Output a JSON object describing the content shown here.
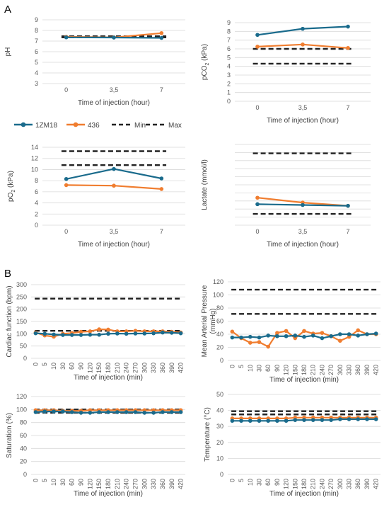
{
  "panels": [
    {
      "label": "A"
    },
    {
      "label": "B"
    }
  ],
  "legend": {
    "items": [
      {
        "label": "1ZM18",
        "color": "#1a6b8c",
        "style": "solid-marker"
      },
      {
        "label": "436",
        "color": "#f07d2f",
        "style": "solid-marker"
      },
      {
        "label": "Min",
        "color": "#222222",
        "style": "dashed"
      },
      {
        "label": "Max",
        "color": "#222222",
        "style": "dashed"
      }
    ]
  },
  "colors": {
    "series_1zm18": "#1a6b8c",
    "series_436": "#f07d2f",
    "reference": "#222222",
    "grid": "#d9d9d9",
    "axis_text": "#595959"
  },
  "chart_data": [
    {
      "type": "line",
      "panel": "A",
      "xlabel": "Time of injection (hour)",
      "ylabel": "pH",
      "ylabel_sub": "",
      "categories": [
        "0",
        "3,5",
        "7"
      ],
      "ylim": [
        3,
        9
      ],
      "yticks": [
        3,
        4,
        5,
        6,
        7,
        8,
        9
      ],
      "grid": true,
      "series": [
        {
          "name": "1ZM18",
          "values": [
            7.35,
            7.33,
            7.3
          ]
        },
        {
          "name": "436",
          "values": [
            7.4,
            7.35,
            7.75
          ]
        }
      ],
      "reference_lines": [
        {
          "name": "Min",
          "value": 7.35
        },
        {
          "name": "Max",
          "value": 7.45
        }
      ]
    },
    {
      "type": "line",
      "panel": "A",
      "xlabel": "Time of injection (hour)",
      "ylabel": "pCO",
      "ylabel_sub": "2",
      "ylabel_unit": " (kPa)",
      "categories": [
        "0",
        "3,5",
        "7"
      ],
      "ylim": [
        0,
        9
      ],
      "yticks": [
        0,
        1,
        2,
        3,
        4,
        5,
        6,
        7,
        8,
        9
      ],
      "grid": true,
      "series": [
        {
          "name": "1ZM18",
          "values": [
            7.6,
            8.3,
            8.55
          ]
        },
        {
          "name": "436",
          "values": [
            6.25,
            6.5,
            6.1
          ]
        }
      ],
      "reference_lines": [
        {
          "name": "Min",
          "value": 4.3
        },
        {
          "name": "Max",
          "value": 6.0
        }
      ]
    },
    {
      "type": "line",
      "panel": "A",
      "xlabel": "Time of injection (hour)",
      "ylabel": "pO",
      "ylabel_sub": "2",
      "ylabel_unit": " (kPa)",
      "categories": [
        "0",
        "3,5",
        "7"
      ],
      "ylim": [
        0,
        14
      ],
      "yticks": [
        0,
        2,
        4,
        6,
        8,
        10,
        12,
        14
      ],
      "grid": true,
      "series": [
        {
          "name": "1ZM18",
          "values": [
            8.3,
            10.1,
            8.4
          ]
        },
        {
          "name": "436",
          "values": [
            7.2,
            7.1,
            6.5
          ]
        }
      ],
      "reference_lines": [
        {
          "name": "Min",
          "value": 10.8
        },
        {
          "name": "Max",
          "value": 13.3
        }
      ]
    },
    {
      "type": "line",
      "panel": "A",
      "xlabel": "Time of injection (hour)",
      "ylabel": "Lactate (mmol/l)",
      "ylabel_sub": "",
      "categories": [
        "0",
        "3,5",
        "7"
      ],
      "ylim": [
        0,
        5
      ],
      "yticks": [
        0,
        0.5,
        1,
        1.5,
        2,
        2.5,
        3,
        3.5,
        4,
        4.5,
        5
      ],
      "ytick_labels": [
        "",
        "",
        "",
        "",
        "",
        "",
        "",
        "",
        "",
        "",
        ""
      ],
      "grid": true,
      "series": [
        {
          "name": "1ZM18",
          "values": [
            1.3,
            1.25,
            1.2
          ]
        },
        {
          "name": "436",
          "values": [
            1.7,
            1.4,
            1.2
          ]
        }
      ],
      "reference_lines": [
        {
          "name": "Min",
          "value": 0.7
        },
        {
          "name": "Max",
          "value": 4.45
        }
      ]
    },
    {
      "type": "line",
      "panel": "B",
      "xlabel": "Time of injection (min)",
      "ylabel": "Cardiac function (bpm)",
      "ylabel_sub": "",
      "categories": [
        "0",
        "5",
        "10",
        "30",
        "60",
        "90",
        "120",
        "150",
        "180",
        "210",
        "240",
        "270",
        "300",
        "330",
        "360",
        "390",
        "420"
      ],
      "ylim": [
        0,
        300
      ],
      "yticks": [
        0,
        50,
        100,
        150,
        200,
        250,
        300
      ],
      "grid": true,
      "series": [
        {
          "name": "1ZM18",
          "values": [
            102,
            100,
            97,
            95,
            95,
            95,
            96,
            96,
            100,
            101,
            100,
            101,
            101,
            102,
            105,
            104,
            102
          ]
        },
        {
          "name": "436",
          "values": [
            105,
            93,
            88,
            100,
            103,
            108,
            110,
            118,
            117,
            110,
            110,
            112,
            110,
            110,
            110,
            108,
            105
          ]
        }
      ],
      "reference_lines": [
        {
          "name": "Min",
          "value": 112
        },
        {
          "name": "Max",
          "value": 243
        }
      ]
    },
    {
      "type": "line",
      "panel": "B",
      "xlabel": "Time of injection (min)",
      "ylabel": "Mean Arterial Pressure",
      "ylabel_line2": "(mmHg)",
      "ylabel_sub": "",
      "categories": [
        "0",
        "5",
        "10",
        "30",
        "60",
        "90",
        "120",
        "150",
        "180",
        "210",
        "240",
        "270",
        "300",
        "330",
        "360",
        "390",
        "420"
      ],
      "ylim": [
        0,
        120
      ],
      "yticks": [
        0,
        20,
        40,
        60,
        80,
        100,
        120
      ],
      "grid": true,
      "series": [
        {
          "name": "1ZM18",
          "values": [
            35,
            35,
            36,
            35,
            38,
            37,
            37,
            38,
            36,
            38,
            34,
            37,
            40,
            40,
            38,
            40,
            41
          ]
        },
        {
          "name": "436",
          "values": [
            44,
            34,
            27,
            28,
            21,
            42,
            45,
            34,
            45,
            41,
            42,
            37,
            30,
            36,
            46,
            40,
            40
          ]
        }
      ],
      "reference_lines": [
        {
          "name": "Min",
          "value": 71
        },
        {
          "name": "Max",
          "value": 108
        }
      ]
    },
    {
      "type": "line",
      "panel": "B",
      "xlabel": "Time of injection (min)",
      "ylabel": "Saturation (%)",
      "ylabel_sub": "",
      "categories": [
        "0",
        "5",
        "10",
        "30",
        "60",
        "90",
        "120",
        "150",
        "180",
        "210",
        "240",
        "270",
        "300",
        "330",
        "360",
        "390",
        "420"
      ],
      "ylim": [
        0,
        120
      ],
      "yticks": [
        0,
        20,
        40,
        60,
        80,
        100,
        120
      ],
      "grid": true,
      "series": [
        {
          "name": "1ZM18",
          "values": [
            96,
            97,
            97,
            97,
            96,
            95,
            95,
            96,
            96,
            96,
            96,
            96,
            95,
            95,
            96,
            96,
            96
          ]
        },
        {
          "name": "436",
          "values": [
            99,
            99,
            99,
            98,
            98,
            98,
            99,
            99,
            99,
            99,
            99,
            99,
            99,
            99,
            99,
            99,
            99
          ]
        }
      ],
      "reference_lines": [
        {
          "name": "Min",
          "value": 95
        },
        {
          "name": "Max",
          "value": 100
        }
      ]
    },
    {
      "type": "line",
      "panel": "B",
      "xlabel": "Time of injection (min)",
      "ylabel": "Temperature (°C)",
      "ylabel_sub": "",
      "categories": [
        "0",
        "5",
        "10",
        "30",
        "60",
        "90",
        "120",
        "150",
        "180",
        "210",
        "240",
        "270",
        "300",
        "330",
        "360",
        "390",
        "420"
      ],
      "ylim": [
        0,
        50
      ],
      "yticks": [
        0,
        10,
        20,
        30,
        40,
        50
      ],
      "grid": true,
      "series": [
        {
          "name": "1ZM18",
          "values": [
            33.5,
            33.5,
            33.5,
            33.5,
            33.5,
            33.5,
            33.5,
            34,
            34,
            34,
            34,
            34,
            34.5,
            34.5,
            34.5,
            34.5,
            34.5
          ]
        },
        {
          "name": "436",
          "values": [
            35,
            35,
            35,
            35,
            35,
            35,
            35,
            35.5,
            35.5,
            35.5,
            35.5,
            35.5,
            35.5,
            35.5,
            35.5,
            35.5,
            35.5
          ]
        }
      ],
      "reference_lines": [
        {
          "name": "Min",
          "value": 37.5
        },
        {
          "name": "Max",
          "value": 39.5
        }
      ]
    }
  ]
}
